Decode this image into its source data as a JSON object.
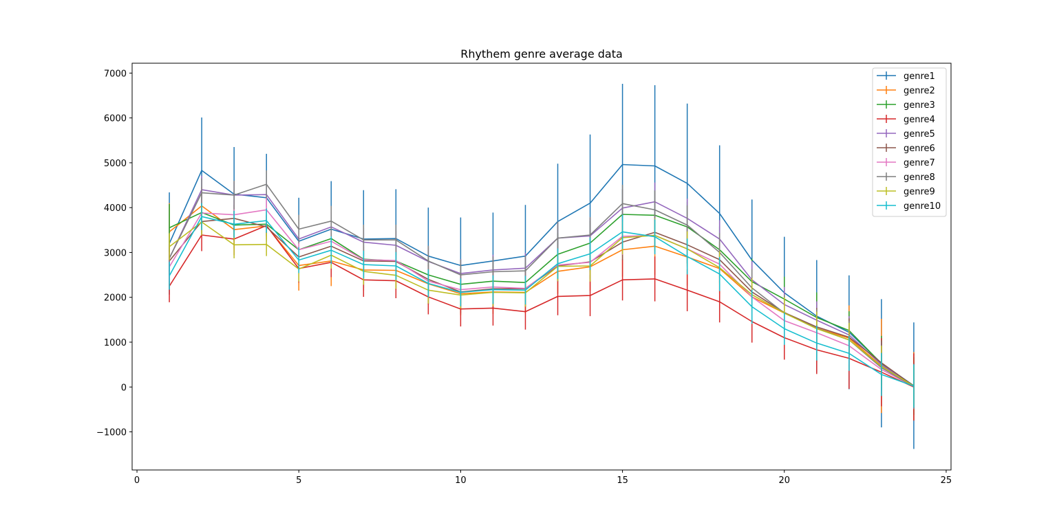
{
  "chart_data": {
    "type": "line",
    "title": "Rhythem genre average data",
    "xlabel": "",
    "ylabel": "",
    "xlim": [
      -0.15,
      25.15
    ],
    "ylim": [
      -1850,
      7220
    ],
    "xticks": [
      0,
      5,
      10,
      15,
      20,
      25
    ],
    "yticks": [
      -1000,
      0,
      1000,
      2000,
      3000,
      4000,
      5000,
      6000,
      7000
    ],
    "ytick_labels": [
      "−1000",
      "0",
      "1000",
      "2000",
      "3000",
      "4000",
      "5000",
      "6000",
      "7000"
    ],
    "legend_position": "top-right",
    "x": [
      1,
      2,
      3,
      4,
      5,
      6,
      7,
      8,
      9,
      10,
      11,
      12,
      13,
      14,
      15,
      16,
      17,
      18,
      19,
      20,
      21,
      22,
      23,
      24
    ],
    "series": [
      {
        "name": "genre1",
        "color": "#1f77b4",
        "values": [
          3200,
          4830,
          4300,
          4220,
          3250,
          3520,
          3300,
          3310,
          2920,
          2710,
          2810,
          2920,
          3690,
          4100,
          4960,
          4930,
          4540,
          3870,
          2830,
          2100,
          1580,
          1220,
          530,
          30
        ],
        "errors": [
          1140,
          1180,
          1050,
          980,
          970,
          1070,
          1090,
          1100,
          1080,
          1070,
          1080,
          1140,
          1290,
          1530,
          1800,
          1800,
          1780,
          1520,
          1350,
          1250,
          1250,
          1270,
          1430,
          1410
        ]
      },
      {
        "name": "genre2",
        "color": "#ff7f0e",
        "values": [
          3460,
          4040,
          3510,
          3590,
          2710,
          2810,
          2610,
          2600,
          2300,
          2080,
          2120,
          2110,
          2580,
          2680,
          3060,
          3140,
          2900,
          2640,
          2010,
          1650,
          1310,
          1090,
          470,
          20
        ],
        "errors": [
          640,
          420,
          420,
          300,
          560,
          560,
          460,
          430,
          450,
          480,
          490,
          460,
          500,
          540,
          600,
          640,
          640,
          560,
          560,
          560,
          760,
          730,
          1050,
          760
        ]
      },
      {
        "name": "genre3",
        "color": "#2ca02c",
        "values": [
          3550,
          3890,
          3610,
          3630,
          3060,
          3310,
          2850,
          2810,
          2500,
          2290,
          2360,
          2330,
          2960,
          3210,
          3850,
          3830,
          3570,
          3060,
          2350,
          1960,
          1550,
          1260,
          520,
          20
        ],
        "errors": [
          530,
          340,
          360,
          280,
          460,
          480,
          420,
          430,
          420,
          450,
          460,
          440,
          470,
          490,
          560,
          560,
          560,
          520,
          510,
          500,
          560,
          430,
          620,
          640
        ]
      },
      {
        "name": "genre4",
        "color": "#d62728",
        "values": [
          2250,
          3390,
          3300,
          3600,
          2640,
          2780,
          2390,
          2370,
          2010,
          1740,
          1760,
          1680,
          2020,
          2040,
          2390,
          2410,
          2160,
          1900,
          1460,
          1100,
          830,
          640,
          330,
          0
        ],
        "errors": [
          360,
          360,
          360,
          230,
          310,
          330,
          380,
          390,
          390,
          390,
          390,
          400,
          420,
          460,
          460,
          500,
          470,
          460,
          470,
          490,
          540,
          680,
          760,
          750
        ]
      },
      {
        "name": "genre5",
        "color": "#9467bd",
        "values": [
          2870,
          4400,
          4280,
          4290,
          3300,
          3570,
          3230,
          3160,
          2800,
          2530,
          2610,
          2650,
          3320,
          3370,
          3990,
          4130,
          3760,
          3300,
          2390,
          1840,
          1490,
          1160,
          500,
          20
        ],
        "errors": [
          320,
          310,
          300,
          280,
          300,
          320,
          310,
          320,
          320,
          320,
          340,
          340,
          360,
          400,
          420,
          430,
          440,
          420,
          420,
          390,
          420,
          420,
          500,
          500
        ]
      },
      {
        "name": "genre6",
        "color": "#8c564b",
        "values": [
          2810,
          3690,
          3760,
          3570,
          2900,
          3140,
          2810,
          2800,
          2400,
          2120,
          2190,
          2190,
          2700,
          2790,
          3230,
          3450,
          3170,
          2840,
          2120,
          1660,
          1340,
          1110,
          540,
          20
        ],
        "errors": [
          310,
          300,
          300,
          280,
          290,
          320,
          320,
          320,
          320,
          320,
          330,
          330,
          350,
          380,
          400,
          410,
          420,
          410,
          410,
          390,
          420,
          420,
          500,
          500
        ]
      },
      {
        "name": "genre7",
        "color": "#e377c2",
        "values": [
          2680,
          3880,
          3840,
          3950,
          3060,
          3250,
          2840,
          2820,
          2360,
          2170,
          2230,
          2200,
          2720,
          2780,
          3360,
          3380,
          3080,
          2740,
          2010,
          1480,
          1210,
          920,
          390,
          10
        ],
        "errors": [
          330,
          320,
          310,
          300,
          310,
          330,
          330,
          330,
          330,
          330,
          340,
          340,
          360,
          390,
          410,
          420,
          430,
          420,
          420,
          400,
          420,
          420,
          500,
          500
        ]
      },
      {
        "name": "genre8",
        "color": "#7f7f7f",
        "values": [
          2870,
          4330,
          4280,
          4520,
          3520,
          3700,
          3280,
          3280,
          2810,
          2500,
          2570,
          2590,
          3320,
          3390,
          4090,
          3950,
          3610,
          3000,
          2210,
          1650,
          1310,
          1050,
          430,
          10
        ],
        "errors": [
          320,
          320,
          320,
          310,
          320,
          340,
          340,
          340,
          340,
          340,
          340,
          340,
          370,
          400,
          420,
          430,
          440,
          430,
          420,
          400,
          420,
          420,
          500,
          500
        ]
      },
      {
        "name": "genre9",
        "color": "#bcbd22",
        "values": [
          3130,
          3680,
          3170,
          3180,
          2630,
          2940,
          2580,
          2490,
          2160,
          2050,
          2110,
          2100,
          2690,
          2700,
          3330,
          3380,
          3080,
          2660,
          2060,
          1650,
          1300,
          1050,
          460,
          20
        ],
        "errors": [
          300,
          300,
          300,
          260,
          280,
          300,
          300,
          300,
          300,
          300,
          310,
          310,
          330,
          350,
          370,
          380,
          390,
          370,
          370,
          350,
          380,
          380,
          460,
          460
        ]
      },
      {
        "name": "genre10",
        "color": "#17becf",
        "values": [
          2480,
          3800,
          3630,
          3710,
          2830,
          3050,
          2730,
          2700,
          2310,
          2110,
          2170,
          2160,
          2750,
          2970,
          3460,
          3350,
          2910,
          2520,
          1790,
          1300,
          980,
          750,
          280,
          20
        ],
        "errors": [
          310,
          300,
          300,
          270,
          290,
          310,
          310,
          310,
          310,
          310,
          320,
          320,
          340,
          360,
          380,
          390,
          400,
          380,
          380,
          360,
          390,
          390,
          480,
          480
        ]
      }
    ]
  }
}
